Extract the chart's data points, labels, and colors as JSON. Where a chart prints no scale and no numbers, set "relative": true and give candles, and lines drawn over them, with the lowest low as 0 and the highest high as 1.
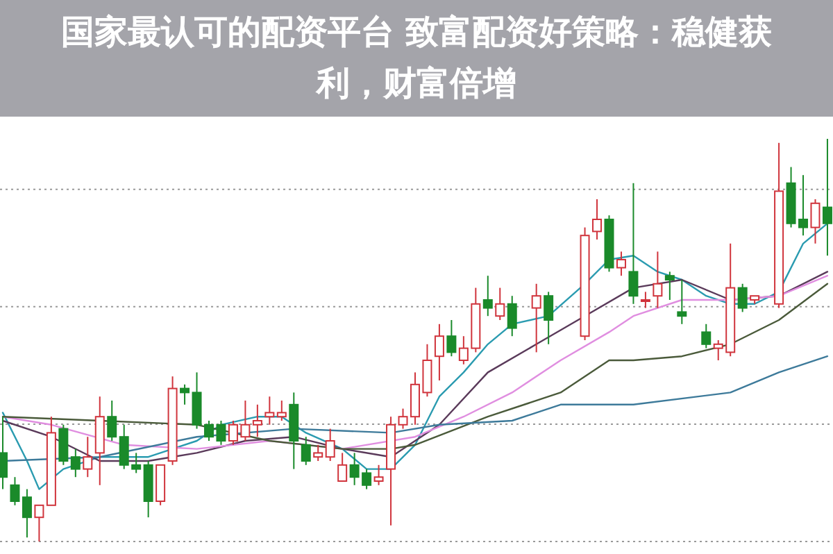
{
  "chart_data": {
    "type": "candlestick",
    "title": "国家最认可的配资平台 致富配资好策略：稳健获利，财富倍增",
    "relative": true,
    "grid": "y",
    "categories": [
      null,
      null,
      null,
      null,
      null,
      null,
      null,
      null,
      null,
      null,
      null,
      null,
      null,
      null,
      null,
      null,
      null,
      null,
      null,
      null,
      null,
      null,
      null,
      null,
      null,
      null,
      null,
      null,
      null,
      null,
      null,
      null,
      null,
      null,
      null,
      null,
      null,
      null,
      null,
      null,
      null,
      null,
      null,
      null,
      null,
      null,
      null,
      null,
      null,
      null,
      null,
      null,
      null,
      null,
      null,
      null,
      null,
      null,
      null,
      null,
      null,
      null,
      null,
      null,
      null,
      null,
      null,
      null,
      null
    ],
    "ohlc": [
      [
        0.22,
        0.31,
        0.13,
        0.16
      ],
      [
        0.14,
        0.16,
        0.09,
        0.1
      ],
      [
        0.11,
        0.13,
        0.01,
        0.06
      ],
      [
        0.06,
        0.09,
        0,
        0.09
      ],
      [
        0.09,
        0.31,
        0.09,
        0.27
      ],
      [
        0.28,
        0.29,
        0.19,
        0.2
      ],
      [
        0.21,
        0.23,
        0.16,
        0.18
      ],
      [
        0.18,
        0.26,
        0.16,
        0.21
      ],
      [
        0.22,
        0.36,
        0.14,
        0.31
      ],
      [
        0.31,
        0.35,
        0.25,
        0.26
      ],
      [
        0.26,
        0.29,
        0.18,
        0.19
      ],
      [
        0.19,
        0.22,
        0.17,
        0.18
      ],
      [
        0.19,
        0.2,
        0.06,
        0.1
      ],
      [
        0.1,
        0.19,
        0.09,
        0.19
      ],
      [
        0.2,
        0.41,
        0.19,
        0.38
      ],
      [
        0.38,
        0.39,
        0.34,
        0.37
      ],
      [
        0.37,
        0.42,
        0.28,
        0.29
      ],
      [
        0.29,
        0.3,
        0.25,
        0.26
      ],
      [
        0.29,
        0.3,
        0.24,
        0.25
      ],
      [
        0.25,
        0.3,
        0.24,
        0.29
      ],
      [
        0.26,
        0.35,
        0.25,
        0.29
      ],
      [
        0.29,
        0.34,
        0.26,
        0.3
      ],
      [
        0.31,
        0.36,
        0.29,
        0.32
      ],
      [
        0.31,
        0.35,
        0.3,
        0.32
      ],
      [
        0.34,
        0.37,
        0.18,
        0.25
      ],
      [
        0.24,
        0.26,
        0.19,
        0.2
      ],
      [
        0.21,
        0.24,
        0.2,
        0.22
      ],
      [
        0.21,
        0.28,
        0.2,
        0.25
      ],
      [
        0.15,
        0.22,
        0.15,
        0.19
      ],
      [
        0.19,
        0.22,
        0.14,
        0.16
      ],
      [
        0.17,
        0.18,
        0.13,
        0.14
      ],
      [
        0.15,
        0.19,
        0.14,
        0.16
      ],
      [
        0.18,
        0.31,
        0.04,
        0.29
      ],
      [
        0.29,
        0.33,
        0.28,
        0.31
      ],
      [
        0.31,
        0.42,
        0.29,
        0.39
      ],
      [
        0.37,
        0.49,
        0.36,
        0.45
      ],
      [
        0.46,
        0.54,
        0.4,
        0.51
      ],
      [
        0.51,
        0.55,
        0.46,
        0.47
      ],
      [
        0.45,
        0.51,
        0.44,
        0.48
      ],
      [
        0.48,
        0.63,
        0.47,
        0.59
      ],
      [
        0.6,
        0.66,
        0.56,
        0.58
      ],
      [
        0.56,
        0.63,
        0.55,
        0.59
      ],
      [
        0.59,
        0.61,
        0.51,
        0.53
      ],
      null,
      [
        0.58,
        0.64,
        0.47,
        0.61
      ],
      [
        0.61,
        0.62,
        0.49,
        0.55
      ],
      null,
      null,
      [
        0.51,
        0.78,
        0.5,
        0.76
      ],
      [
        0.77,
        0.85,
        0.75,
        0.8
      ],
      [
        0.8,
        0.81,
        0.67,
        0.68
      ],
      [
        0.68,
        0.72,
        0.66,
        0.7
      ],
      [
        0.67,
        0.89,
        0.59,
        0.61
      ],
      [
        0.6,
        0.62,
        0.58,
        0.6
      ],
      [
        0.61,
        0.72,
        0.58,
        0.64
      ],
      [
        0.66,
        0.67,
        0.6,
        0.65
      ],
      [
        0.57,
        0.65,
        0.54,
        0.56
      ],
      null,
      [
        0.52,
        0.54,
        0.48,
        0.49
      ],
      [
        0.48,
        0.5,
        0.45,
        0.49
      ],
      [
        0.47,
        0.74,
        0.46,
        0.63
      ],
      [
        0.63,
        0.64,
        0.57,
        0.58
      ],
      [
        0.6,
        0.61,
        0.59,
        0.61
      ],
      null,
      [
        0.59,
        0.99,
        0.58,
        0.87
      ],
      [
        0.89,
        0.93,
        0.78,
        0.79
      ],
      [
        0.8,
        0.91,
        0.76,
        0.78
      ],
      [
        0.78,
        0.85,
        0.74,
        0.84
      ],
      [
        0.83,
        1,
        0.71,
        0.79
      ]
    ],
    "series": [
      {
        "type": "line",
        "color": "#2a9bb0",
        "values": [
          0.32,
          null,
          0.2,
          0.13,
          null,
          0.18,
          null,
          null,
          0.21,
          null,
          null,
          null,
          0.21,
          null,
          0.23,
          null,
          0.25,
          null,
          0.29,
          null,
          null,
          0.31,
          null,
          0.31,
          null,
          0.27,
          null,
          null,
          0.23,
          null,
          0.18,
          null,
          0.18,
          null,
          0.24,
          null,
          0.36,
          null,
          0.42,
          null,
          0.49,
          null,
          0.54,
          null,
          null,
          0.56,
          null,
          null,
          0.64,
          null,
          0.7,
          null,
          0.71,
          null,
          0.67,
          null,
          0.65,
          null,
          0.61,
          null,
          0.59,
          null,
          0.59,
          null,
          0.62,
          null,
          0.74,
          null,
          0.79
        ]
      },
      {
        "type": "line",
        "color": "#5a3a5a",
        "values": [
          0.3,
          null,
          null,
          null,
          0.26,
          null,
          null,
          null,
          0.2,
          null,
          null,
          null,
          0.2,
          null,
          null,
          null,
          0.22,
          null,
          null,
          null,
          0.25,
          null,
          null,
          null,
          0.26,
          null,
          null,
          null,
          0.23,
          null,
          null,
          null,
          0.21,
          null,
          null,
          null,
          0.29,
          null,
          null,
          null,
          0.42,
          null,
          null,
          null,
          0.49,
          null,
          null,
          null,
          0.56,
          null,
          null,
          null,
          0.63,
          null,
          null,
          null,
          0.65,
          null,
          null,
          null,
          0.6,
          null,
          null,
          null,
          0.61,
          null,
          null,
          null,
          0.67
        ]
      },
      {
        "type": "line",
        "color": "#e08ee0",
        "values": [
          0.31,
          null,
          null,
          null,
          0.29,
          null,
          null,
          null,
          null,
          null,
          0.24,
          null,
          null,
          null,
          null,
          null,
          0.23,
          null,
          null,
          null,
          null,
          null,
          0.25,
          null,
          null,
          null,
          null,
          null,
          0.23,
          null,
          null,
          null,
          null,
          null,
          0.26,
          null,
          null,
          null,
          0.31,
          null,
          null,
          null,
          0.37,
          null,
          null,
          null,
          0.45,
          null,
          null,
          null,
          0.52,
          null,
          0.56,
          null,
          null,
          null,
          0.6,
          null,
          null,
          null,
          0.6,
          null,
          null,
          null,
          0.61,
          null,
          null,
          null,
          0.66
        ]
      },
      {
        "type": "line",
        "color": "#4a5a3a",
        "values": [
          0.31,
          null,
          null,
          null,
          null,
          null,
          null,
          null,
          0.3,
          null,
          null,
          null,
          null,
          null,
          null,
          null,
          0.29,
          null,
          null,
          null,
          null,
          null,
          0.25,
          null,
          null,
          null,
          null,
          null,
          0.23,
          null,
          null,
          null,
          0.23,
          null,
          0.24,
          null,
          null,
          null,
          null,
          null,
          0.31,
          null,
          null,
          null,
          null,
          null,
          0.37,
          null,
          null,
          null,
          0.45,
          null,
          0.45,
          null,
          null,
          null,
          0.46,
          null,
          null,
          null,
          0.49,
          null,
          null,
          null,
          0.55,
          null,
          null,
          null,
          0.64
        ]
      },
      {
        "type": "line",
        "color": "#3d7a9a",
        "values": [
          0.2,
          null,
          null,
          null,
          null,
          null,
          null,
          null,
          0.21,
          null,
          null,
          null,
          null,
          null,
          null,
          null,
          0.26,
          null,
          null,
          null,
          null,
          null,
          null,
          null,
          0.28,
          null,
          null,
          null,
          null,
          null,
          null,
          null,
          0.27,
          null,
          null,
          null,
          0.29,
          null,
          null,
          null,
          null,
          null,
          0.3,
          null,
          null,
          null,
          0.34,
          null,
          null,
          null,
          null,
          null,
          0.34,
          null,
          null,
          null,
          null,
          null,
          null,
          null,
          0.37,
          null,
          null,
          null,
          0.42,
          null,
          null,
          null,
          0.46
        ]
      }
    ]
  }
}
